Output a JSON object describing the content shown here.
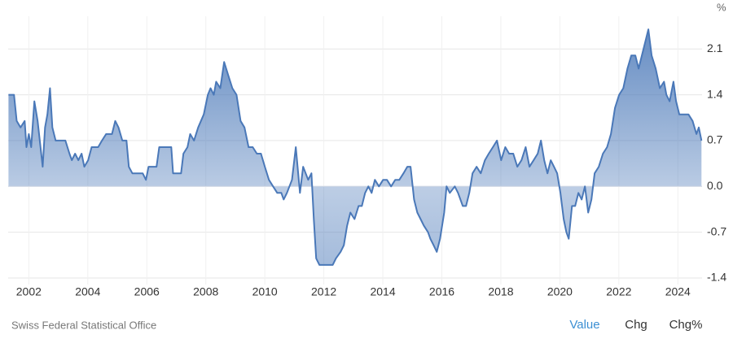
{
  "chart_data": {
    "type": "line",
    "y_axis_label": "%",
    "source": "Swiss Federal Statistical Office",
    "color": "#4a78b8",
    "xlim": [
      2001.3,
      2024.82
    ],
    "xticks": [
      2002,
      2004,
      2006,
      2008,
      2010,
      2012,
      2014,
      2016,
      2018,
      2020,
      2022,
      2024
    ],
    "ylim": [
      -1.5,
      2.6
    ],
    "yticks": [
      -1.4,
      -0.7,
      {
        "value": 0,
        "label": "0.0"
      },
      0.7,
      1.4,
      2.1
    ],
    "grid": true,
    "x": [
      2001.31,
      2001.5,
      2001.59,
      2001.72,
      2001.86,
      2001.92,
      2002.0,
      2002.08,
      2002.19,
      2002.3,
      2002.47,
      2002.55,
      2002.63,
      2002.72,
      2002.8,
      2002.91,
      2003.24,
      2003.38,
      2003.46,
      2003.57,
      2003.68,
      2003.79,
      2003.88,
      2004.01,
      2004.13,
      2004.35,
      2004.48,
      2004.62,
      2004.82,
      2004.93,
      2005.04,
      2005.17,
      2005.31,
      2005.39,
      2005.51,
      2005.86,
      2005.97,
      2006.06,
      2006.33,
      2006.42,
      2006.83,
      2006.89,
      2007.16,
      2007.24,
      2007.38,
      2007.47,
      2007.6,
      2007.74,
      2007.93,
      2008.07,
      2008.16,
      2008.27,
      2008.35,
      2008.49,
      2008.62,
      2008.76,
      2008.9,
      2009.04,
      2009.18,
      2009.31,
      2009.45,
      2009.59,
      2009.73,
      2009.87,
      2010.0,
      2010.14,
      2010.28,
      2010.42,
      2010.56,
      2010.64,
      2010.75,
      2010.92,
      2011.05,
      2011.19,
      2011.3,
      2011.47,
      2011.58,
      2011.66,
      2011.74,
      2011.85,
      2012.07,
      2012.3,
      2012.41,
      2012.57,
      2012.68,
      2012.79,
      2012.9,
      2013.04,
      2013.18,
      2013.29,
      2013.4,
      2013.51,
      2013.62,
      2013.73,
      2013.87,
      2014.01,
      2014.14,
      2014.28,
      2014.42,
      2014.56,
      2014.7,
      2014.83,
      2014.94,
      2015.06,
      2015.17,
      2015.28,
      2015.39,
      2015.53,
      2015.61,
      2015.72,
      2015.83,
      2015.94,
      2016.08,
      2016.16,
      2016.27,
      2016.44,
      2016.55,
      2016.71,
      2016.82,
      2016.93,
      2017.04,
      2017.18,
      2017.32,
      2017.46,
      2017.59,
      2017.73,
      2017.87,
      2018.01,
      2018.15,
      2018.28,
      2018.42,
      2018.56,
      2018.7,
      2018.84,
      2018.97,
      2019.11,
      2019.25,
      2019.36,
      2019.47,
      2019.58,
      2019.69,
      2019.8,
      2019.91,
      2020.02,
      2020.13,
      2020.22,
      2020.3,
      2020.41,
      2020.52,
      2020.63,
      2020.74,
      2020.85,
      2020.96,
      2021.07,
      2021.18,
      2021.32,
      2021.46,
      2021.6,
      2021.73,
      2021.87,
      2022.01,
      2022.15,
      2022.29,
      2022.42,
      2022.56,
      2022.67,
      2022.78,
      2022.89,
      2023.0,
      2023.11,
      2023.25,
      2023.39,
      2023.53,
      2023.61,
      2023.72,
      2023.85,
      2023.94,
      2024.05,
      2024.22,
      2024.36,
      2024.5,
      2024.63,
      2024.71,
      2024.8
    ],
    "values": [
      1.4,
      1.4,
      1.0,
      0.9,
      1.0,
      0.6,
      0.8,
      0.6,
      1.3,
      1.0,
      0.3,
      0.9,
      1.1,
      1.5,
      0.9,
      0.7,
      0.7,
      0.5,
      0.4,
      0.5,
      0.4,
      0.5,
      0.3,
      0.4,
      0.6,
      0.6,
      0.7,
      0.8,
      0.8,
      1.0,
      0.9,
      0.7,
      0.7,
      0.3,
      0.2,
      0.2,
      0.1,
      0.3,
      0.3,
      0.6,
      0.6,
      0.2,
      0.2,
      0.5,
      0.6,
      0.8,
      0.7,
      0.9,
      1.1,
      1.4,
      1.5,
      1.4,
      1.6,
      1.5,
      1.9,
      1.7,
      1.5,
      1.4,
      1.0,
      0.9,
      0.6,
      0.6,
      0.5,
      0.5,
      0.3,
      0.1,
      0.0,
      -0.1,
      -0.1,
      -0.2,
      -0.1,
      0.1,
      0.6,
      -0.1,
      0.3,
      0.1,
      0.2,
      -0.5,
      -1.1,
      -1.2,
      -1.2,
      -1.2,
      -1.1,
      -1.0,
      -0.9,
      -0.6,
      -0.4,
      -0.5,
      -0.3,
      -0.3,
      -0.1,
      0.0,
      -0.1,
      0.1,
      0.0,
      0.1,
      0.1,
      0.0,
      0.1,
      0.1,
      0.2,
      0.3,
      0.3,
      -0.2,
      -0.4,
      -0.5,
      -0.6,
      -0.7,
      -0.8,
      -0.9,
      -1.0,
      -0.8,
      -0.4,
      0.0,
      -0.1,
      0.0,
      -0.1,
      -0.3,
      -0.3,
      -0.1,
      0.2,
      0.3,
      0.2,
      0.4,
      0.5,
      0.6,
      0.7,
      0.4,
      0.6,
      0.5,
      0.5,
      0.3,
      0.4,
      0.6,
      0.3,
      0.4,
      0.5,
      0.7,
      0.4,
      0.2,
      0.4,
      0.3,
      0.2,
      -0.1,
      -0.5,
      -0.7,
      -0.8,
      -0.3,
      -0.3,
      -0.1,
      -0.2,
      0.0,
      -0.4,
      -0.2,
      0.2,
      0.3,
      0.5,
      0.6,
      0.8,
      1.2,
      1.4,
      1.5,
      1.8,
      2.0,
      2.0,
      1.8,
      2.0,
      2.2,
      2.4,
      2.0,
      1.8,
      1.5,
      1.6,
      1.4,
      1.3,
      1.6,
      1.3,
      1.1,
      1.1,
      1.1,
      1.0,
      0.8,
      0.9,
      0.7
    ]
  },
  "controls": [
    "Value",
    "Chg",
    "Chg%"
  ]
}
